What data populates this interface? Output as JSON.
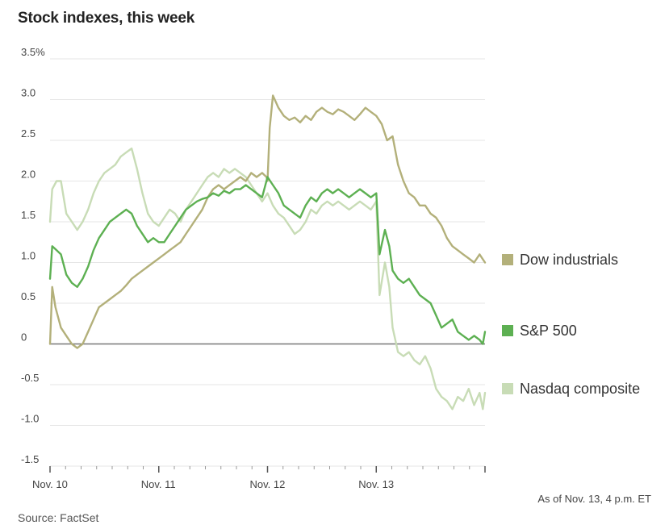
{
  "title": "Stock indexes, this week",
  "note": "As of Nov. 13, 4 p.m. ET",
  "source": "Source: FactSet",
  "chart_data": {
    "type": "line",
    "title": "Stock indexes, this week",
    "xlabel": "",
    "ylabel": "",
    "ylim": [
      -1.5,
      3.5
    ],
    "xlim": [
      0,
      4
    ],
    "y_ticks": [
      -1.5,
      -1.0,
      -0.5,
      0,
      0.5,
      1.0,
      1.5,
      2.0,
      2.5,
      3.0,
      3.5
    ],
    "y_tick_labels": [
      "-1.5",
      "-1.0",
      "-0.5",
      "0",
      "0.5",
      "1.0",
      "1.5",
      "2.0",
      "2.5",
      "3.0",
      "3.5%"
    ],
    "x_ticks": [
      0,
      1,
      2,
      3
    ],
    "x_tick_labels": [
      "Nov. 10",
      "Nov. 11",
      "Nov. 12",
      "Nov. 13"
    ],
    "grid": true,
    "legend_position": "right",
    "series": [
      {
        "name": "Dow industrials",
        "color": "#b3b07a",
        "x": [
          0,
          0.02,
          0.05,
          0.1,
          0.15,
          0.2,
          0.25,
          0.3,
          0.35,
          0.4,
          0.45,
          0.5,
          0.55,
          0.6,
          0.65,
          0.7,
          0.75,
          0.8,
          0.85,
          0.9,
          0.95,
          1.0,
          1.05,
          1.1,
          1.15,
          1.2,
          1.25,
          1.3,
          1.35,
          1.4,
          1.45,
          1.5,
          1.55,
          1.6,
          1.65,
          1.7,
          1.75,
          1.8,
          1.85,
          1.9,
          1.95,
          1.99,
          2.0,
          2.02,
          2.05,
          2.1,
          2.15,
          2.2,
          2.25,
          2.3,
          2.35,
          2.4,
          2.45,
          2.5,
          2.55,
          2.6,
          2.65,
          2.7,
          2.75,
          2.8,
          2.85,
          2.9,
          2.95,
          3.0,
          3.05,
          3.1,
          3.15,
          3.2,
          3.25,
          3.3,
          3.35,
          3.4,
          3.45,
          3.5,
          3.55,
          3.6,
          3.65,
          3.7,
          3.75,
          3.8,
          3.85,
          3.9,
          3.95,
          4.0
        ],
        "values": [
          0,
          0.7,
          0.45,
          0.2,
          0.1,
          0.0,
          -0.05,
          0.0,
          0.15,
          0.3,
          0.45,
          0.5,
          0.55,
          0.6,
          0.65,
          0.72,
          0.8,
          0.85,
          0.9,
          0.95,
          1.0,
          1.05,
          1.1,
          1.15,
          1.2,
          1.25,
          1.35,
          1.45,
          1.55,
          1.65,
          1.8,
          1.9,
          1.95,
          1.9,
          1.95,
          2.0,
          2.05,
          2.0,
          2.1,
          2.05,
          2.1,
          2.05,
          2.0,
          2.65,
          3.05,
          2.9,
          2.8,
          2.75,
          2.78,
          2.72,
          2.8,
          2.75,
          2.85,
          2.9,
          2.85,
          2.82,
          2.88,
          2.85,
          2.8,
          2.75,
          2.82,
          2.9,
          2.85,
          2.8,
          2.7,
          2.5,
          2.55,
          2.2,
          2.0,
          1.85,
          1.8,
          1.7,
          1.7,
          1.6,
          1.55,
          1.45,
          1.3,
          1.2,
          1.15,
          1.1,
          1.05,
          1.0,
          1.1,
          1.0
        ]
      },
      {
        "name": "S&P 500",
        "color": "#5db052",
        "x": [
          0,
          0.02,
          0.06,
          0.1,
          0.15,
          0.2,
          0.25,
          0.3,
          0.35,
          0.4,
          0.45,
          0.5,
          0.55,
          0.6,
          0.65,
          0.7,
          0.75,
          0.8,
          0.85,
          0.9,
          0.95,
          1.0,
          1.05,
          1.1,
          1.15,
          1.2,
          1.25,
          1.3,
          1.35,
          1.4,
          1.45,
          1.5,
          1.55,
          1.6,
          1.65,
          1.7,
          1.75,
          1.8,
          1.85,
          1.9,
          1.95,
          2.0,
          2.05,
          2.1,
          2.15,
          2.2,
          2.25,
          2.3,
          2.35,
          2.4,
          2.45,
          2.5,
          2.55,
          2.6,
          2.65,
          2.7,
          2.75,
          2.8,
          2.85,
          2.9,
          2.95,
          3.0,
          3.03,
          3.08,
          3.12,
          3.15,
          3.2,
          3.25,
          3.3,
          3.35,
          3.4,
          3.45,
          3.5,
          3.55,
          3.6,
          3.65,
          3.7,
          3.75,
          3.8,
          3.85,
          3.9,
          3.95,
          3.98,
          4.0
        ],
        "values": [
          0.8,
          1.2,
          1.15,
          1.1,
          0.85,
          0.75,
          0.7,
          0.8,
          0.95,
          1.15,
          1.3,
          1.4,
          1.5,
          1.55,
          1.6,
          1.65,
          1.6,
          1.45,
          1.35,
          1.25,
          1.3,
          1.25,
          1.25,
          1.35,
          1.45,
          1.55,
          1.65,
          1.7,
          1.75,
          1.78,
          1.8,
          1.85,
          1.82,
          1.88,
          1.85,
          1.9,
          1.9,
          1.95,
          1.9,
          1.85,
          1.8,
          2.05,
          1.95,
          1.85,
          1.7,
          1.65,
          1.6,
          1.55,
          1.7,
          1.8,
          1.75,
          1.85,
          1.9,
          1.85,
          1.9,
          1.85,
          1.8,
          1.85,
          1.9,
          1.85,
          1.8,
          1.85,
          1.1,
          1.4,
          1.2,
          0.9,
          0.8,
          0.75,
          0.8,
          0.7,
          0.6,
          0.55,
          0.5,
          0.35,
          0.2,
          0.25,
          0.3,
          0.15,
          0.1,
          0.05,
          0.1,
          0.05,
          0.0,
          0.15
        ]
      },
      {
        "name": "Nasdaq composite",
        "color": "#c8dcb6",
        "x": [
          0,
          0.02,
          0.06,
          0.1,
          0.15,
          0.2,
          0.25,
          0.3,
          0.35,
          0.4,
          0.45,
          0.5,
          0.55,
          0.6,
          0.65,
          0.7,
          0.75,
          0.8,
          0.85,
          0.9,
          0.95,
          1.0,
          1.05,
          1.1,
          1.15,
          1.2,
          1.25,
          1.3,
          1.35,
          1.4,
          1.45,
          1.5,
          1.55,
          1.6,
          1.65,
          1.7,
          1.75,
          1.8,
          1.85,
          1.9,
          1.95,
          2.0,
          2.05,
          2.1,
          2.15,
          2.2,
          2.25,
          2.3,
          2.35,
          2.4,
          2.45,
          2.5,
          2.55,
          2.6,
          2.65,
          2.7,
          2.75,
          2.8,
          2.85,
          2.9,
          2.95,
          3.0,
          3.03,
          3.08,
          3.12,
          3.15,
          3.2,
          3.25,
          3.3,
          3.35,
          3.4,
          3.45,
          3.5,
          3.55,
          3.6,
          3.65,
          3.7,
          3.75,
          3.8,
          3.85,
          3.9,
          3.95,
          3.98,
          4.0
        ],
        "values": [
          1.5,
          1.9,
          2.0,
          2.0,
          1.6,
          1.5,
          1.4,
          1.5,
          1.65,
          1.85,
          2.0,
          2.1,
          2.15,
          2.2,
          2.3,
          2.35,
          2.4,
          2.15,
          1.85,
          1.6,
          1.5,
          1.45,
          1.55,
          1.65,
          1.6,
          1.5,
          1.65,
          1.75,
          1.85,
          1.95,
          2.05,
          2.1,
          2.05,
          2.15,
          2.1,
          2.15,
          2.1,
          2.05,
          1.95,
          1.85,
          1.75,
          1.85,
          1.7,
          1.6,
          1.55,
          1.45,
          1.35,
          1.4,
          1.5,
          1.65,
          1.6,
          1.7,
          1.75,
          1.7,
          1.75,
          1.7,
          1.65,
          1.7,
          1.75,
          1.7,
          1.65,
          1.75,
          0.6,
          1.0,
          0.7,
          0.2,
          -0.1,
          -0.15,
          -0.1,
          -0.2,
          -0.25,
          -0.15,
          -0.3,
          -0.55,
          -0.65,
          -0.7,
          -0.8,
          -0.65,
          -0.7,
          -0.55,
          -0.75,
          -0.6,
          -0.8,
          -0.6
        ]
      }
    ]
  }
}
